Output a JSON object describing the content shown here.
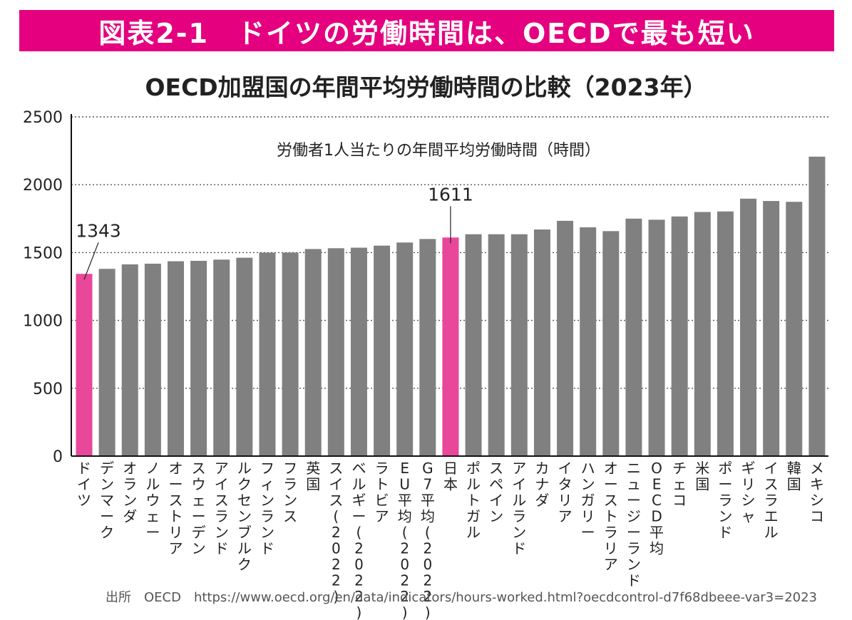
{
  "banner": {
    "title": "図表2-1　ドイツの労働時間は、OECDで最も短い",
    "color": "#e4007f"
  },
  "source": "出所　OECD　https://www.oecd.org/en/data/indicators/hours-worked.html?oecdcontrol-d7f68dbeee-var3=2023",
  "chart_data": {
    "type": "bar",
    "title": "OECD加盟国の年間平均労働時間の比較（2023年）",
    "subtitle": "労働者1人当たりの年間平均労働時間（時間）",
    "ylim": [
      0,
      2500
    ],
    "yticks": [
      0,
      500,
      1000,
      1500,
      2000,
      2500
    ],
    "grid": true,
    "bar_color": "#808080",
    "highlight_color": "#e8479a",
    "categories": [
      "ドイツ",
      "デンマーク",
      "オランダ",
      "ノルウェー",
      "オーストリア",
      "スウェーデン",
      "アイスランド",
      "ルクセンブルク",
      "フィンランド",
      "フランス",
      "英国",
      "スイス(2022)",
      "ベルギー(2022)",
      "ラトビア",
      "EU平均(2022)",
      "G7平均(2022)",
      "日本",
      "ポルトガル",
      "スペイン",
      "アイルランド",
      "カナダ",
      "イタリア",
      "ハンガリー",
      "オーストラリア",
      "ニュージーランド",
      "OECD平均",
      "チェコ",
      "米国",
      "ポーランド",
      "ギリシャ",
      "イスラエル",
      "韓国",
      "メキシコ"
    ],
    "values": [
      1343,
      1380,
      1413,
      1418,
      1436,
      1439,
      1448,
      1462,
      1500,
      1500,
      1526,
      1532,
      1536,
      1551,
      1574,
      1600,
      1611,
      1635,
      1635,
      1635,
      1670,
      1734,
      1686,
      1658,
      1750,
      1742,
      1766,
      1799,
      1803,
      1897,
      1880,
      1874,
      2207
    ],
    "highlight": [
      0,
      16
    ],
    "data_labels": [
      {
        "index": 0,
        "text": "1343"
      },
      {
        "index": 16,
        "text": "1611"
      }
    ]
  }
}
